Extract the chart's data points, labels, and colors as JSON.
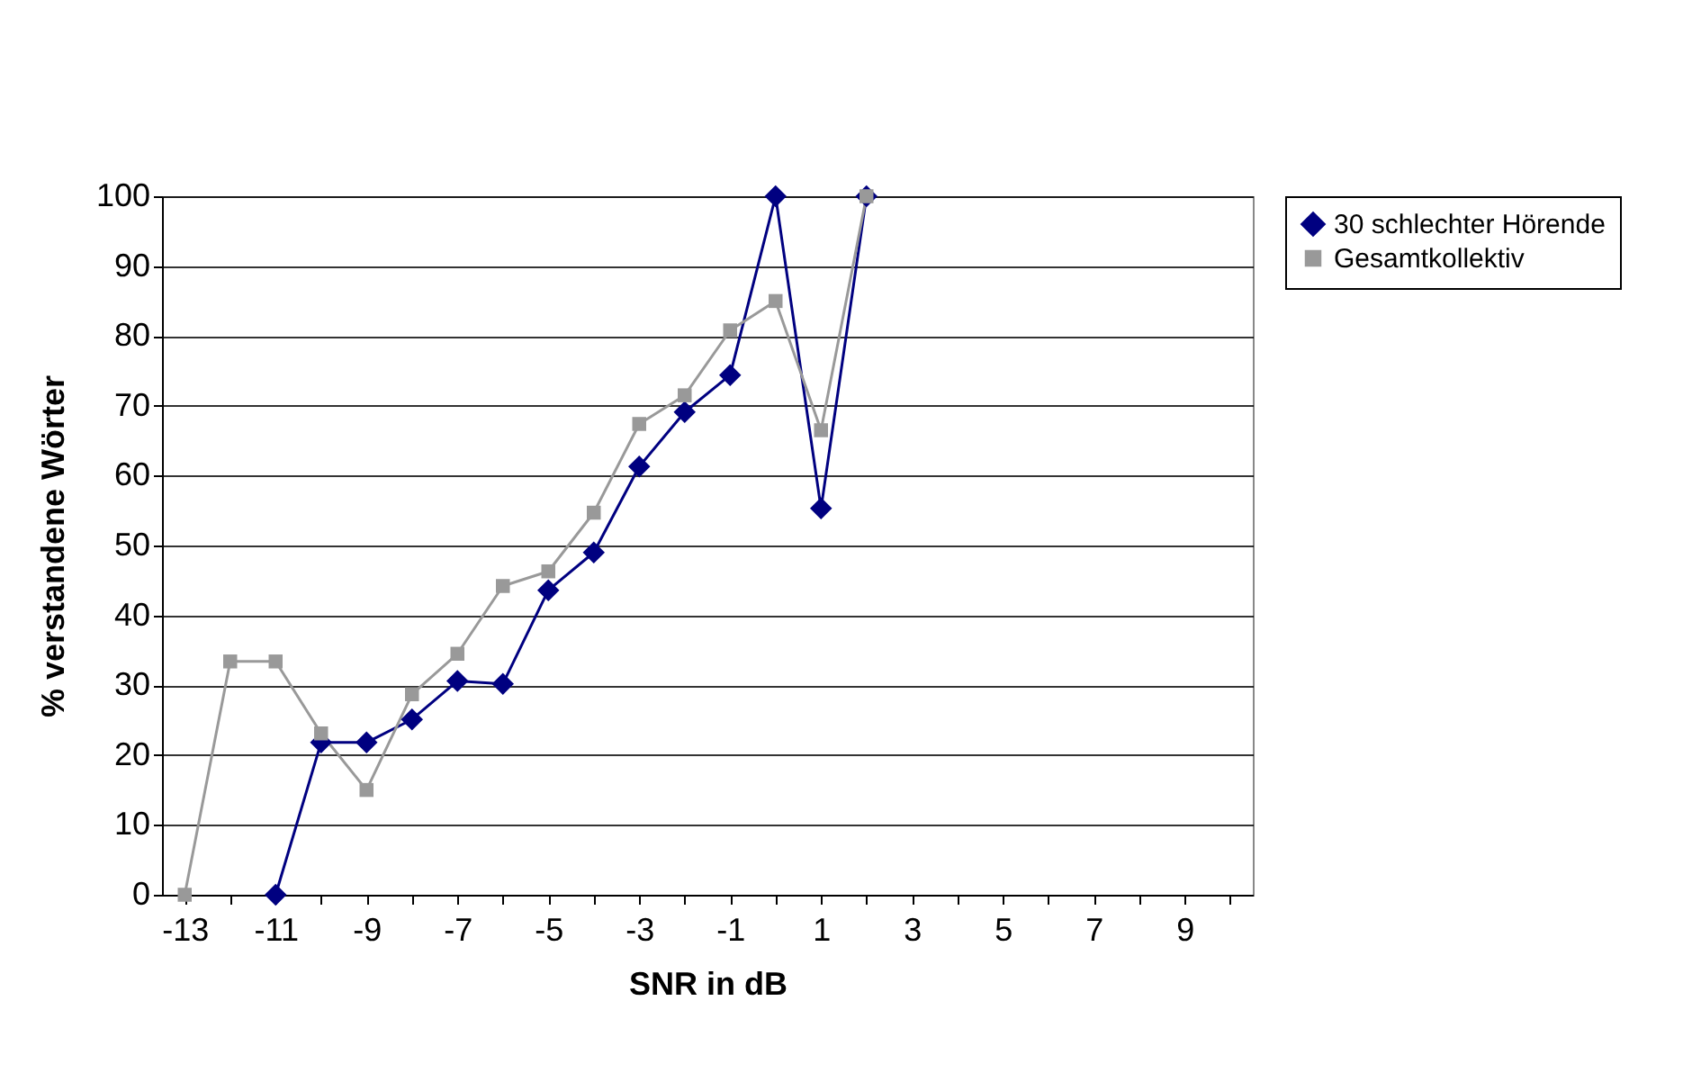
{
  "chart_data": {
    "type": "line",
    "xlabel": "SNR in dB",
    "ylabel": "% verstandene Wörter",
    "categories": [
      "-13",
      null,
      "-11",
      null,
      "-9",
      null,
      "-7",
      null,
      "-5",
      null,
      "-3",
      null,
      "-1",
      null,
      "1",
      null,
      "3",
      null,
      "5",
      null,
      "7",
      null,
      "9",
      null
    ],
    "series": [
      {
        "name": "30 schlechter Hörende",
        "color": "#000080",
        "marker": "diamond",
        "values": [
          null,
          null,
          0,
          21.8,
          21.8,
          25.1,
          30.6,
          30.2,
          43.6,
          49,
          61.3,
          69.1,
          74.4,
          100,
          55.3,
          100,
          null,
          null,
          null,
          null,
          null,
          null,
          null,
          null
        ]
      },
      {
        "name": "Gesamtkollektiv",
        "color": "#999999",
        "marker": "square",
        "values": [
          0,
          33.4,
          33.4,
          23.1,
          15,
          28.7,
          34.5,
          44.2,
          46.3,
          54.7,
          67.4,
          71.5,
          80.8,
          85,
          66.5,
          100,
          null,
          null,
          null,
          null,
          null,
          null,
          null,
          null
        ]
      }
    ],
    "ylim": [
      0,
      100
    ],
    "yticks": [
      0,
      10,
      20,
      30,
      40,
      50,
      60,
      70,
      80,
      90,
      100
    ],
    "grid": "y",
    "legend": "right"
  }
}
